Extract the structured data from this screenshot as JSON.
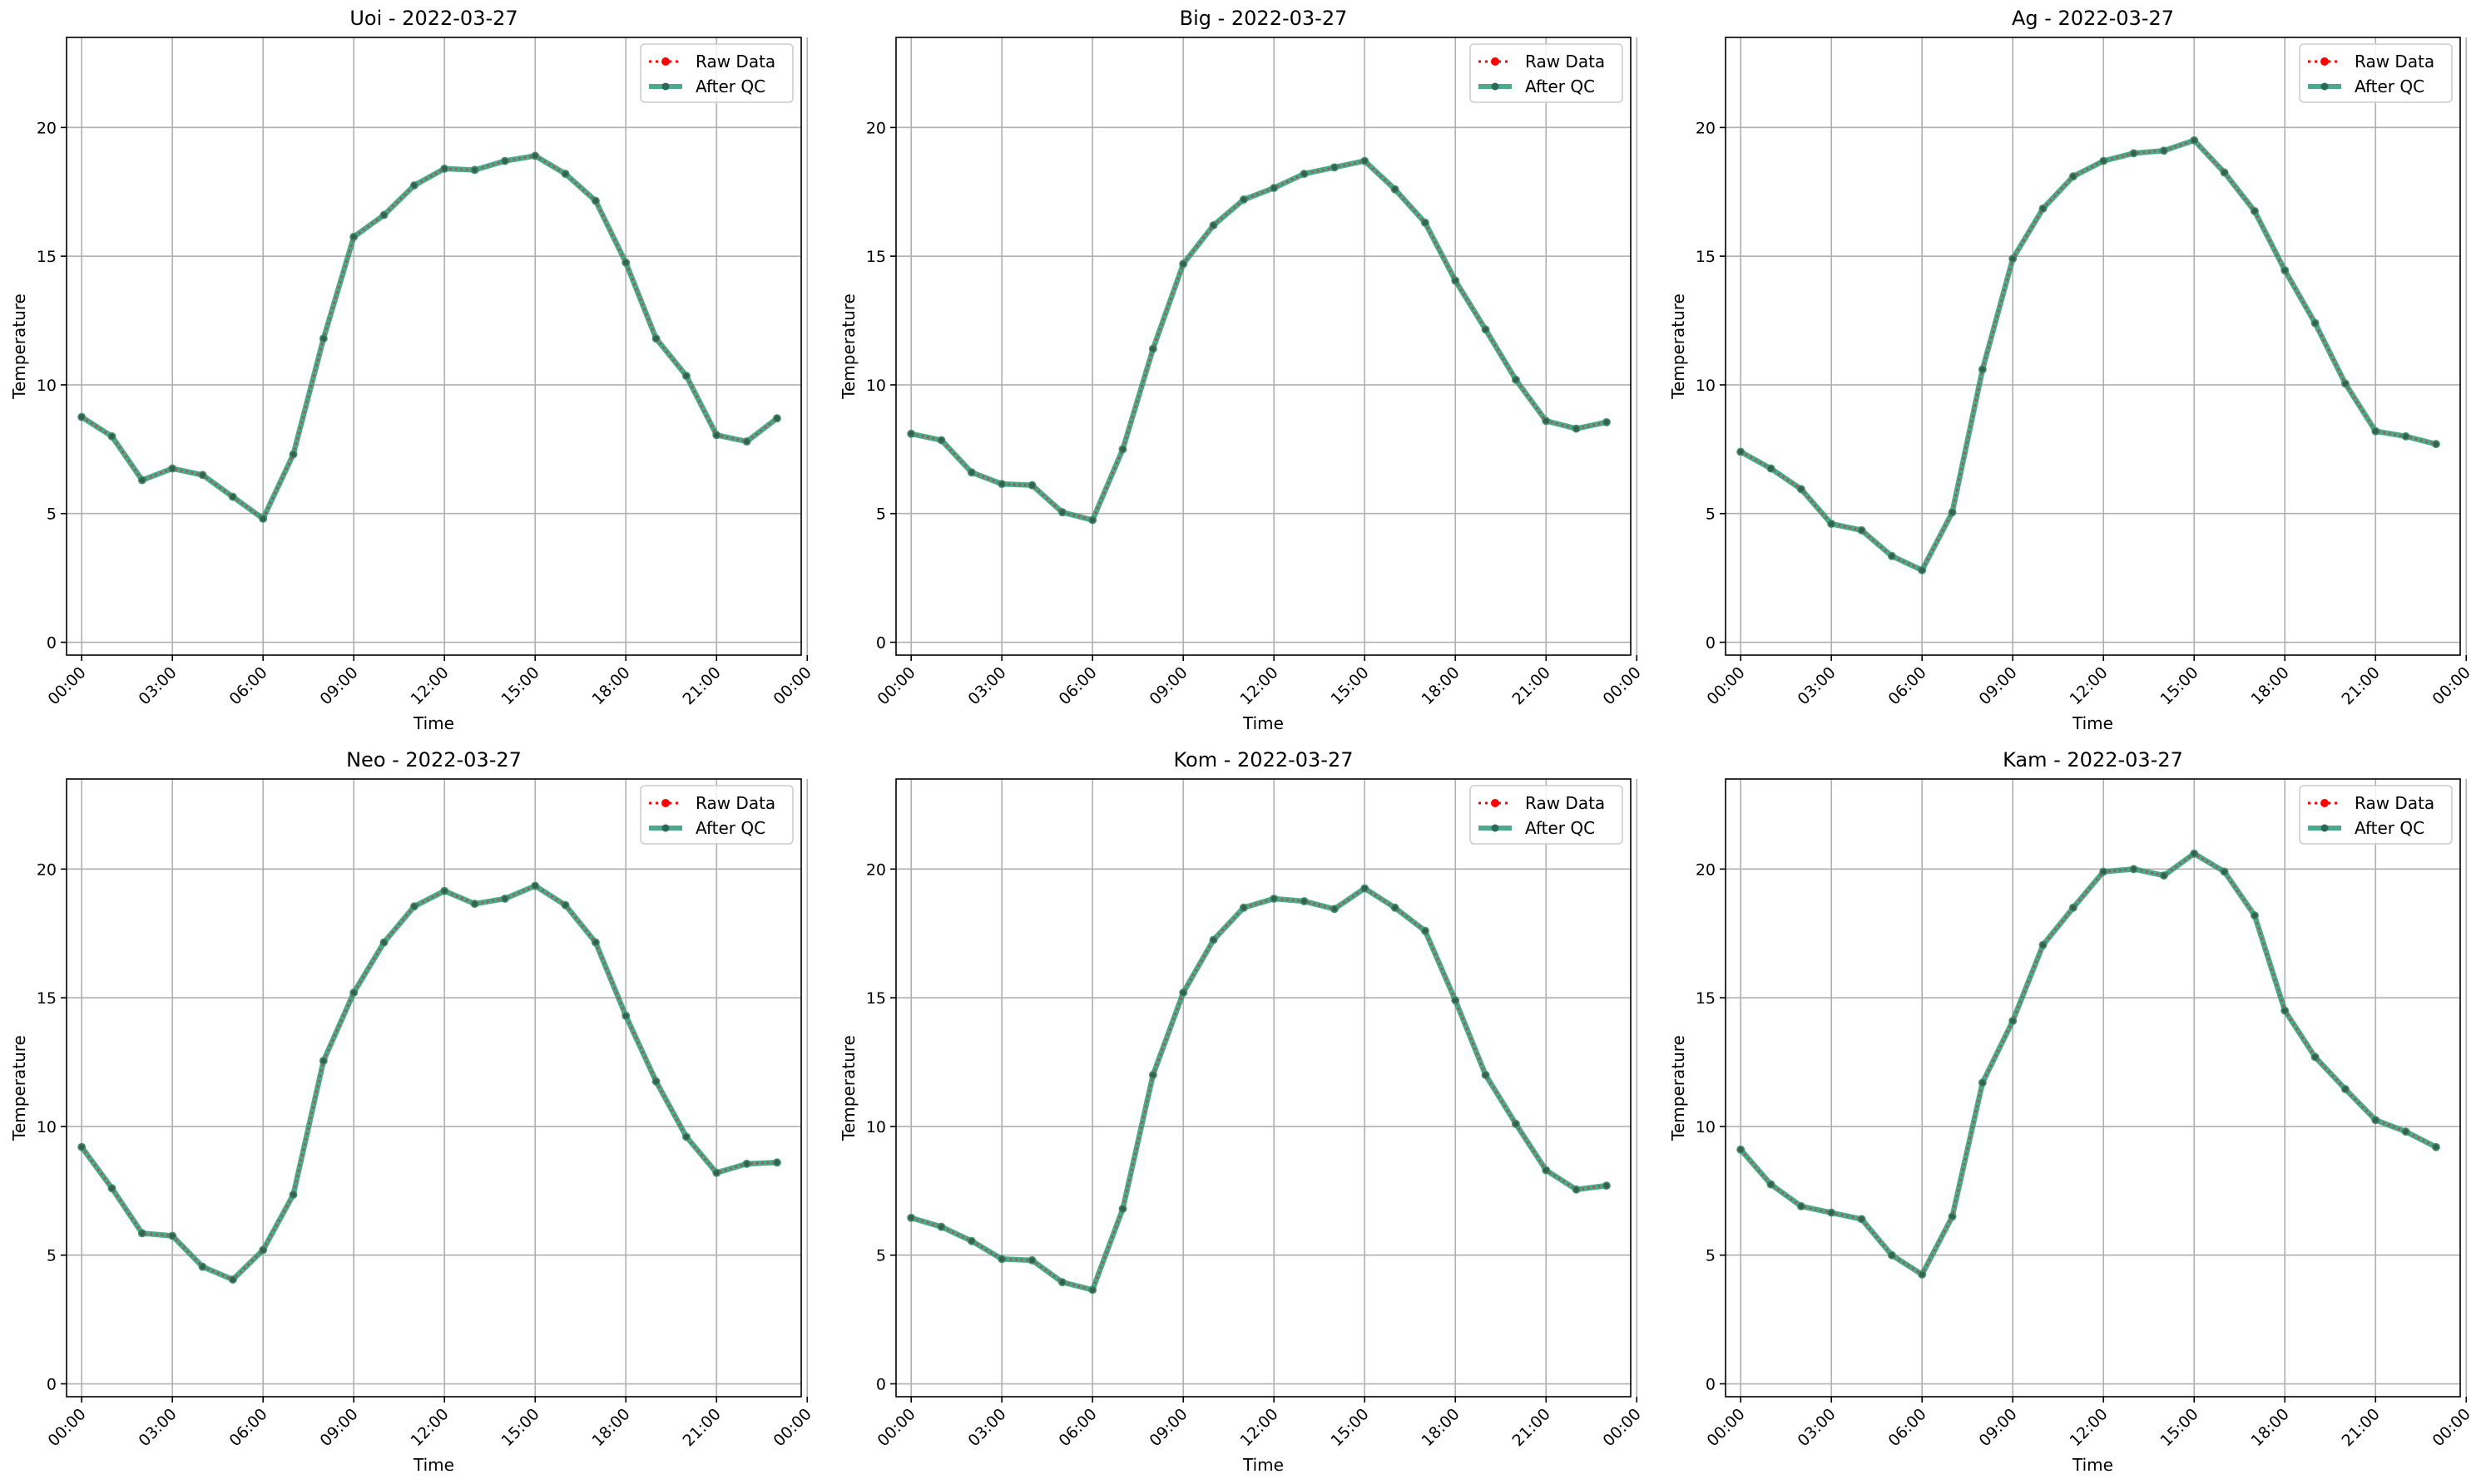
{
  "colors": {
    "raw": "#ff0000",
    "qc": "#2e9a78",
    "grid": "#b0b0b0",
    "axis": "#000000"
  },
  "chart_data": [
    {
      "type": "line",
      "title": "Uoi - 2022-03-27",
      "xlabel": "Time",
      "ylabel": "Temperature",
      "x_unit": "hour",
      "x": [
        0,
        1,
        2,
        3,
        4,
        5,
        6,
        7,
        8,
        9,
        10,
        11,
        12,
        13,
        14,
        15,
        16,
        17,
        18,
        19,
        20,
        21,
        22,
        23
      ],
      "xlim": [
        -0.5,
        23.8
      ],
      "ylim": [
        -0.5,
        23.5
      ],
      "xticks": [
        0,
        3,
        6,
        9,
        12,
        15,
        18,
        21,
        24
      ],
      "xtick_labels": [
        "00:00",
        "03:00",
        "06:00",
        "09:00",
        "12:00",
        "15:00",
        "18:00",
        "21:00",
        "00:00"
      ],
      "yticks": [
        0,
        5,
        10,
        15,
        20
      ],
      "ytick_labels": [
        "0",
        "5",
        "10",
        "15",
        "20"
      ],
      "grid": true,
      "legend_position": "top-right",
      "series": [
        {
          "name": "Raw Data",
          "values": [
            8.75,
            8.0,
            6.3,
            6.75,
            6.5,
            5.65,
            4.8,
            7.3,
            11.8,
            15.75,
            16.6,
            17.75,
            18.4,
            18.35,
            18.7,
            18.9,
            18.2,
            17.15,
            14.75,
            11.8,
            10.35,
            8.05,
            7.8,
            8.7
          ]
        },
        {
          "name": "After QC",
          "values": [
            8.75,
            8.0,
            6.3,
            6.75,
            6.5,
            5.65,
            4.8,
            7.3,
            11.8,
            15.75,
            16.6,
            17.75,
            18.4,
            18.35,
            18.7,
            18.9,
            18.2,
            17.15,
            14.75,
            11.8,
            10.35,
            8.05,
            7.8,
            8.7
          ]
        }
      ]
    },
    {
      "type": "line",
      "title": "Big - 2022-03-27",
      "xlabel": "Time",
      "ylabel": "Temperature",
      "x_unit": "hour",
      "x": [
        0,
        1,
        2,
        3,
        4,
        5,
        6,
        7,
        8,
        9,
        10,
        11,
        12,
        13,
        14,
        15,
        16,
        17,
        18,
        19,
        20,
        21,
        22,
        23
      ],
      "xlim": [
        -0.5,
        23.8
      ],
      "ylim": [
        -0.5,
        23.5
      ],
      "xticks": [
        0,
        3,
        6,
        9,
        12,
        15,
        18,
        21,
        24
      ],
      "xtick_labels": [
        "00:00",
        "03:00",
        "06:00",
        "09:00",
        "12:00",
        "15:00",
        "18:00",
        "21:00",
        "00:00"
      ],
      "yticks": [
        0,
        5,
        10,
        15,
        20
      ],
      "ytick_labels": [
        "0",
        "5",
        "10",
        "15",
        "20"
      ],
      "grid": true,
      "legend_position": "top-right",
      "series": [
        {
          "name": "Raw Data",
          "values": [
            8.1,
            7.85,
            6.6,
            6.15,
            6.1,
            5.05,
            4.75,
            7.5,
            11.4,
            14.7,
            16.2,
            17.2,
            17.65,
            18.2,
            18.45,
            18.7,
            17.6,
            16.3,
            14.05,
            12.15,
            10.2,
            8.6,
            8.3,
            8.55
          ]
        },
        {
          "name": "After QC",
          "values": [
            8.1,
            7.85,
            6.6,
            6.15,
            6.1,
            5.05,
            4.75,
            7.5,
            11.4,
            14.7,
            16.2,
            17.2,
            17.65,
            18.2,
            18.45,
            18.7,
            17.6,
            16.3,
            14.05,
            12.15,
            10.2,
            8.6,
            8.3,
            8.55
          ]
        }
      ]
    },
    {
      "type": "line",
      "title": "Ag - 2022-03-27",
      "xlabel": "Time",
      "ylabel": "Temperature",
      "x_unit": "hour",
      "x": [
        0,
        1,
        2,
        3,
        4,
        5,
        6,
        7,
        8,
        9,
        10,
        11,
        12,
        13,
        14,
        15,
        16,
        17,
        18,
        19,
        20,
        21,
        22,
        23
      ],
      "xlim": [
        -0.5,
        23.8
      ],
      "ylim": [
        -0.5,
        23.5
      ],
      "xticks": [
        0,
        3,
        6,
        9,
        12,
        15,
        18,
        21,
        24
      ],
      "xtick_labels": [
        "00:00",
        "03:00",
        "06:00",
        "09:00",
        "12:00",
        "15:00",
        "18:00",
        "21:00",
        "00:00"
      ],
      "yticks": [
        0,
        5,
        10,
        15,
        20
      ],
      "ytick_labels": [
        "0",
        "5",
        "10",
        "15",
        "20"
      ],
      "grid": true,
      "legend_position": "top-right",
      "series": [
        {
          "name": "Raw Data",
          "values": [
            7.4,
            6.75,
            5.95,
            4.6,
            4.35,
            3.35,
            2.8,
            5.05,
            10.6,
            14.9,
            16.85,
            18.1,
            18.7,
            19.0,
            19.1,
            19.5,
            18.25,
            16.75,
            14.45,
            12.4,
            10.05,
            8.2,
            8.0,
            7.7
          ]
        },
        {
          "name": "After QC",
          "values": [
            7.4,
            6.75,
            5.95,
            4.6,
            4.35,
            3.35,
            2.8,
            5.05,
            10.6,
            14.9,
            16.85,
            18.1,
            18.7,
            19.0,
            19.1,
            19.5,
            18.25,
            16.75,
            14.45,
            12.4,
            10.05,
            8.2,
            8.0,
            7.7
          ]
        }
      ]
    },
    {
      "type": "line",
      "title": "Neo - 2022-03-27",
      "xlabel": "Time",
      "ylabel": "Temperature",
      "x_unit": "hour",
      "x": [
        0,
        1,
        2,
        3,
        4,
        5,
        6,
        7,
        8,
        9,
        10,
        11,
        12,
        13,
        14,
        15,
        16,
        17,
        18,
        19,
        20,
        21,
        22,
        23
      ],
      "xlim": [
        -0.5,
        23.8
      ],
      "ylim": [
        -0.5,
        23.5
      ],
      "xticks": [
        0,
        3,
        6,
        9,
        12,
        15,
        18,
        21,
        24
      ],
      "xtick_labels": [
        "00:00",
        "03:00",
        "06:00",
        "09:00",
        "12:00",
        "15:00",
        "18:00",
        "21:00",
        "00:00"
      ],
      "yticks": [
        0,
        5,
        10,
        15,
        20
      ],
      "ytick_labels": [
        "0",
        "5",
        "10",
        "15",
        "20"
      ],
      "grid": true,
      "legend_position": "top-right",
      "series": [
        {
          "name": "Raw Data",
          "values": [
            9.2,
            7.6,
            5.85,
            5.75,
            4.55,
            4.05,
            5.2,
            7.35,
            12.55,
            15.2,
            17.15,
            18.55,
            19.15,
            18.65,
            18.85,
            19.35,
            18.6,
            17.15,
            14.3,
            11.75,
            9.6,
            8.2,
            8.55,
            8.6
          ]
        },
        {
          "name": "After QC",
          "values": [
            9.2,
            7.6,
            5.85,
            5.75,
            4.55,
            4.05,
            5.2,
            7.35,
            12.55,
            15.2,
            17.15,
            18.55,
            19.15,
            18.65,
            18.85,
            19.35,
            18.6,
            17.15,
            14.3,
            11.75,
            9.6,
            8.2,
            8.55,
            8.6
          ]
        }
      ]
    },
    {
      "type": "line",
      "title": "Kom - 2022-03-27",
      "xlabel": "Time",
      "ylabel": "Temperature",
      "x_unit": "hour",
      "x": [
        0,
        1,
        2,
        3,
        4,
        5,
        6,
        7,
        8,
        9,
        10,
        11,
        12,
        13,
        14,
        15,
        16,
        17,
        18,
        19,
        20,
        21,
        22,
        23
      ],
      "xlim": [
        -0.5,
        23.8
      ],
      "ylim": [
        -0.5,
        23.5
      ],
      "xticks": [
        0,
        3,
        6,
        9,
        12,
        15,
        18,
        21,
        24
      ],
      "xtick_labels": [
        "00:00",
        "03:00",
        "06:00",
        "09:00",
        "12:00",
        "15:00",
        "18:00",
        "21:00",
        "00:00"
      ],
      "yticks": [
        0,
        5,
        10,
        15,
        20
      ],
      "ytick_labels": [
        "0",
        "5",
        "10",
        "15",
        "20"
      ],
      "grid": true,
      "legend_position": "top-right",
      "series": [
        {
          "name": "Raw Data",
          "values": [
            6.45,
            6.1,
            5.55,
            4.85,
            4.8,
            3.95,
            3.65,
            6.8,
            12.0,
            15.2,
            17.25,
            18.5,
            18.85,
            18.75,
            18.45,
            19.25,
            18.5,
            17.6,
            14.9,
            12.0,
            10.1,
            8.3,
            7.55,
            7.7
          ]
        },
        {
          "name": "After QC",
          "values": [
            6.45,
            6.1,
            5.55,
            4.85,
            4.8,
            3.95,
            3.65,
            6.8,
            12.0,
            15.2,
            17.25,
            18.5,
            18.85,
            18.75,
            18.45,
            19.25,
            18.5,
            17.6,
            14.9,
            12.0,
            10.1,
            8.3,
            7.55,
            7.7
          ]
        }
      ]
    },
    {
      "type": "line",
      "title": "Kam - 2022-03-27",
      "xlabel": "Time",
      "ylabel": "Temperature",
      "x_unit": "hour",
      "x": [
        0,
        1,
        2,
        3,
        4,
        5,
        6,
        7,
        8,
        9,
        10,
        11,
        12,
        13,
        14,
        15,
        16,
        17,
        18,
        19,
        20,
        21,
        22,
        23
      ],
      "xlim": [
        -0.5,
        23.8
      ],
      "ylim": [
        -0.5,
        23.5
      ],
      "xticks": [
        0,
        3,
        6,
        9,
        12,
        15,
        18,
        21,
        24
      ],
      "xtick_labels": [
        "00:00",
        "03:00",
        "06:00",
        "09:00",
        "12:00",
        "15:00",
        "18:00",
        "21:00",
        "00:00"
      ],
      "yticks": [
        0,
        5,
        10,
        15,
        20
      ],
      "ytick_labels": [
        "0",
        "5",
        "10",
        "15",
        "20"
      ],
      "grid": true,
      "legend_position": "top-right",
      "series": [
        {
          "name": "Raw Data",
          "values": [
            9.1,
            7.75,
            6.9,
            6.65,
            6.4,
            5.0,
            4.25,
            6.5,
            11.7,
            14.1,
            17.05,
            18.5,
            19.9,
            20.0,
            19.75,
            20.6,
            19.9,
            18.2,
            14.5,
            12.7,
            11.45,
            10.25,
            9.8,
            9.2
          ]
        },
        {
          "name": "After QC",
          "values": [
            9.1,
            7.75,
            6.9,
            6.65,
            6.4,
            5.0,
            4.25,
            6.5,
            11.7,
            14.1,
            17.05,
            18.5,
            19.9,
            20.0,
            19.75,
            20.6,
            19.9,
            18.2,
            14.5,
            12.7,
            11.45,
            10.25,
            9.8,
            9.2
          ]
        }
      ]
    }
  ]
}
